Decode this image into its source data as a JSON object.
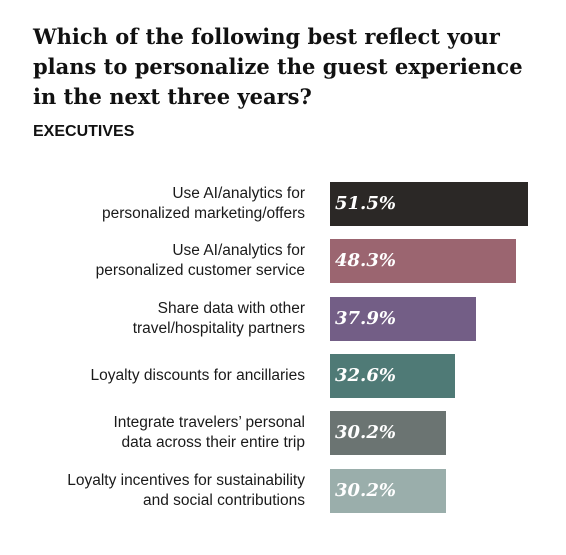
{
  "chart_data": {
    "type": "bar",
    "orientation": "horizontal",
    "title": "Which of the following best reflect your plans to personalize the guest experience in the next three years?",
    "subtitle": "EXECUTIVES",
    "categories": [
      "Use AI/analytics for\npersonalized marketing/offers",
      "Use AI/analytics for\npersonalized customer service",
      "Share data with other\ntravel/hospitality partners",
      "Loyalty discounts for ancillaries",
      "Integrate travelers’ personal\ndata across their entire trip",
      "Loyalty incentives for sustainability\nand social contributions"
    ],
    "values": [
      51.5,
      48.3,
      37.9,
      32.6,
      30.2,
      30.2
    ],
    "value_labels": [
      "51.5%",
      "48.3%",
      "37.9%",
      "32.6%",
      "30.2%",
      "30.2%"
    ],
    "colors": [
      "#2b2826",
      "#9b6570",
      "#735e86",
      "#4f7a76",
      "#6b7472",
      "#9aaeab"
    ]
  }
}
